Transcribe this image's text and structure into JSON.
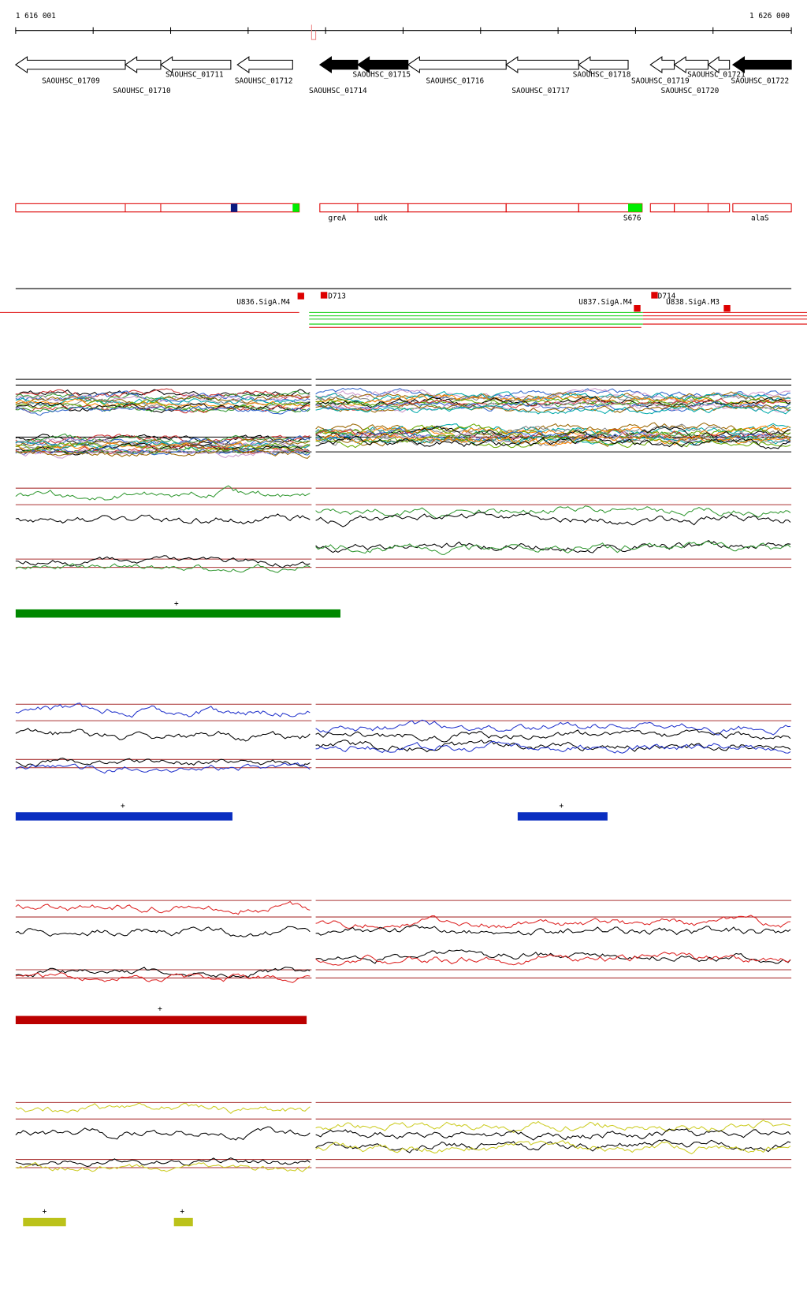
{
  "ruler": {
    "start": "1 616 001",
    "end": "1 626 000"
  },
  "genes": [
    "SAOUHSC_01709",
    "SAOUHSC_01710",
    "SAOUHSC_01711",
    "SAOUHSC_01712",
    "SAOUHSC_01714",
    "SAOUHSC_01715",
    "SAOUHSC_01716",
    "SAOUHSC_01717",
    "SAOUHSC_01718",
    "SAOUHSC_01719",
    "SAOUHSC_01720",
    "SAOUHSC_01721",
    "SAOUHSC_01722"
  ],
  "features": [
    "greA",
    "udk",
    "S676",
    "alaS"
  ],
  "probes": [
    "U836.SigA.M4",
    "D713",
    "U837.SigA.M4",
    "D714",
    "U838.SigA.M3"
  ],
  "markers": [
    "+",
    "+",
    "+",
    "+",
    "+",
    "+"
  ]
}
